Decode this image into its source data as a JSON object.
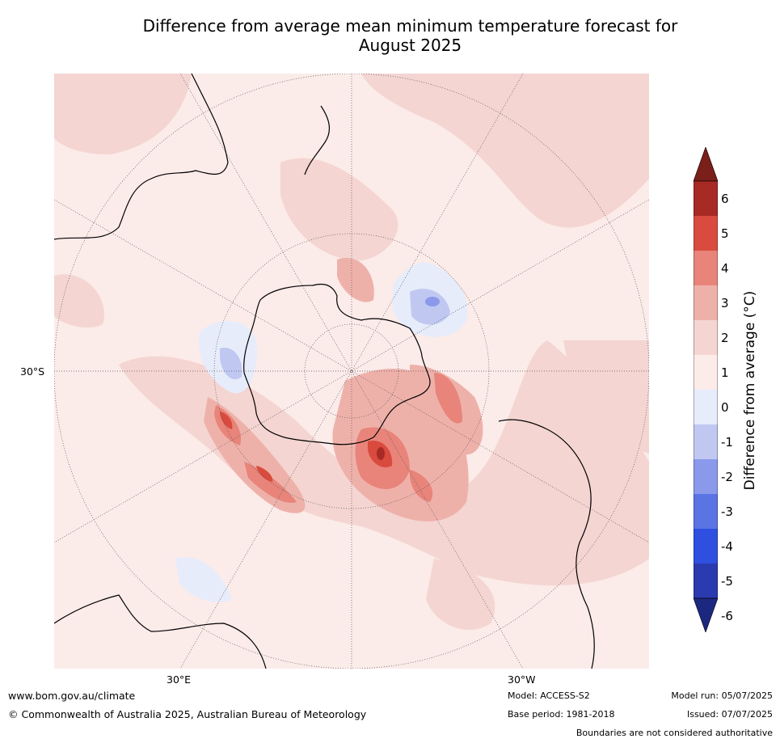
{
  "title_line1": "Difference from average mean minimum temperature forecast for",
  "title_line2": "August 2025",
  "map": {
    "projection": "south-polar-stereographic",
    "lat_label": "30°S",
    "lon_labels": {
      "east": "30°E",
      "west": "30°W"
    },
    "land_outline_color": "#000000",
    "border_color": "#888888"
  },
  "colorbar": {
    "title": "Difference from average (°C)",
    "tick_labels": [
      "6",
      "5",
      "4",
      "3",
      "2",
      "1",
      "0",
      "-1",
      "-2",
      "-3",
      "-4",
      "-5",
      "-6"
    ],
    "colors_top_to_bottom": [
      "#7a1f1a",
      "#a82a24",
      "#d94b3e",
      "#e8847a",
      "#eeb1aa",
      "#f4d5d1",
      "#fbebe9",
      "#e7ecfb",
      "#c0c8f2",
      "#8a99ea",
      "#5a74e4",
      "#2f4fe0",
      "#2a3aaf",
      "#1c2880"
    ],
    "extend": "both"
  },
  "footer": {
    "website": "www.bom.gov.au/climate",
    "copyright": "© Commonwealth of Australia 2025, Australian Bureau of Meteorology",
    "model": "Model: ACCESS-S2",
    "base_period": "Base period: 1981-2018",
    "model_run": "Model run: 05/07/2025",
    "issued": "Issued: 07/07/2025",
    "disclaimer": "Boundaries are not considered authoritative"
  }
}
